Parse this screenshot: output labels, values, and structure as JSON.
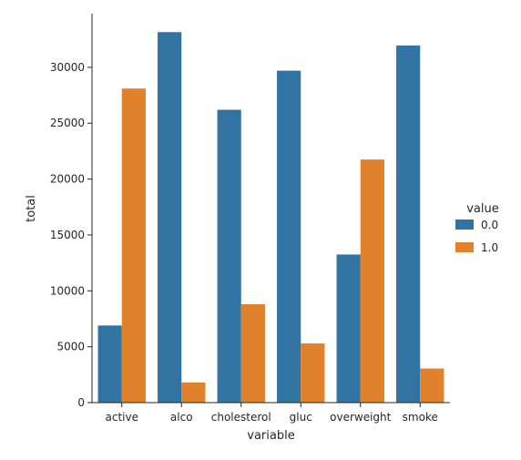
{
  "chart_data": {
    "type": "bar",
    "title": "",
    "xlabel": "variable",
    "ylabel": "total",
    "categories": [
      "active",
      "alco",
      "cholesterol",
      "gluc",
      "overweight",
      "smoke"
    ],
    "series": [
      {
        "name": "0.0",
        "color": "#3274a1",
        "values": [
          6900,
          33150,
          26200,
          29700,
          13250,
          31950
        ]
      },
      {
        "name": "1.0",
        "color": "#e1812c",
        "values": [
          28100,
          1800,
          8800,
          5300,
          21750,
          3050
        ]
      }
    ],
    "ylim": [
      0,
      34800
    ],
    "yticks": [
      0,
      5000,
      10000,
      15000,
      20000,
      25000,
      30000
    ],
    "legend": {
      "title": "value",
      "placement": "right"
    },
    "grid": false
  }
}
